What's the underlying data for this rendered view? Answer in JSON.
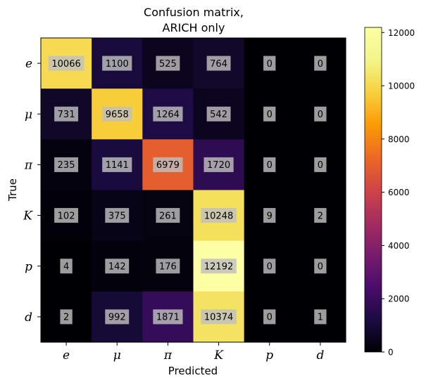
{
  "chart_data": {
    "type": "heatmap",
    "title_lines": [
      "Confusion matrix,",
      "ARICH only"
    ],
    "xlabel": "Predicted",
    "ylabel": "True",
    "x_categories": [
      "e",
      "μ",
      "π",
      "K",
      "p",
      "d"
    ],
    "y_categories": [
      "e",
      "μ",
      "π",
      "K",
      "p",
      "d"
    ],
    "values": [
      [
        10066,
        1100,
        525,
        764,
        0,
        0
      ],
      [
        731,
        9658,
        1264,
        542,
        0,
        0
      ],
      [
        235,
        1141,
        6979,
        1720,
        0,
        0
      ],
      [
        102,
        375,
        261,
        10248,
        9,
        2
      ],
      [
        4,
        142,
        176,
        12192,
        0,
        0
      ],
      [
        2,
        992,
        1871,
        10374,
        0,
        1
      ]
    ],
    "colormap": "inferno",
    "vmin": 0,
    "vmax": 12192,
    "colorbar_ticks": [
      0,
      2000,
      4000,
      6000,
      8000,
      10000,
      12000
    ],
    "cell_label_background": "#c0c0c0"
  }
}
